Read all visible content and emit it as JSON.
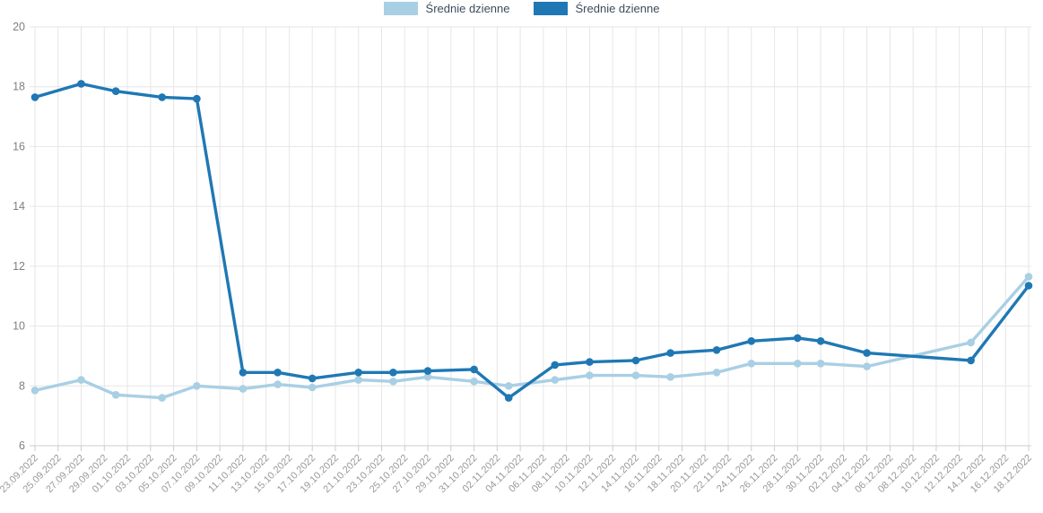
{
  "chart_data": {
    "type": "line",
    "title": "",
    "legend_position": "top-center",
    "grid": true,
    "ylim": [
      6,
      20
    ],
    "yticks": [
      20,
      18,
      16,
      14,
      12,
      10,
      8,
      6
    ],
    "x_axis": {
      "tick_interval_days": 2,
      "tick_labels": [
        "23.09.2022",
        "25.09.2022",
        "27.09.2022",
        "29.09.2022",
        "01.10.2022",
        "03.10.2022",
        "05.10.2022",
        "07.10.2022",
        "09.10.2022",
        "11.10.2022",
        "13.10.2022",
        "15.10.2022",
        "17.10.2022",
        "19.10.2022",
        "21.10.2022",
        "23.10.2022",
        "25.10.2022",
        "27.10.2022",
        "29.10.2022",
        "31.10.2022",
        "02.11.2022",
        "04.11.2022",
        "06.11.2022",
        "08.11.2022",
        "10.11.2022",
        "12.11.2022",
        "14.11.2022",
        "16.11.2022",
        "18.11.2022",
        "20.11.2022",
        "22.11.2022",
        "24.11.2022",
        "26.11.2022",
        "28.11.2022",
        "30.11.2022",
        "02.12.2022",
        "04.12.2022",
        "06.12.2022",
        "08.12.2022",
        "10.12.2022",
        "12.12.2022",
        "14.12.2022",
        "16.12.2022",
        "18.12.2022"
      ]
    },
    "legend": [
      {
        "label": "Średnie dzienne",
        "color": "#a9cfe4"
      },
      {
        "label": "Średnie dzienne",
        "color": "#1f78b4"
      }
    ],
    "series": [
      {
        "name": "Średnie dzienne",
        "color": "#a9cfe4",
        "points": [
          {
            "date": "23.09.2022",
            "day": 0,
            "value": 7.85
          },
          {
            "date": "27.09.2022",
            "day": 4,
            "value": 8.2
          },
          {
            "date": "30.09.2022",
            "day": 7,
            "value": 7.7
          },
          {
            "date": "04.10.2022",
            "day": 11,
            "value": 7.6
          },
          {
            "date": "07.10.2022",
            "day": 14,
            "value": 8.0
          },
          {
            "date": "11.10.2022",
            "day": 18,
            "value": 7.9
          },
          {
            "date": "14.10.2022",
            "day": 21,
            "value": 8.05
          },
          {
            "date": "17.10.2022",
            "day": 24,
            "value": 7.95
          },
          {
            "date": "21.10.2022",
            "day": 28,
            "value": 8.2
          },
          {
            "date": "24.10.2022",
            "day": 31,
            "value": 8.15
          },
          {
            "date": "27.10.2022",
            "day": 34,
            "value": 8.3
          },
          {
            "date": "31.10.2022",
            "day": 38,
            "value": 8.15
          },
          {
            "date": "03.11.2022",
            "day": 41,
            "value": 8.0
          },
          {
            "date": "07.11.2022",
            "day": 45,
            "value": 8.2
          },
          {
            "date": "10.11.2022",
            "day": 48,
            "value": 8.35
          },
          {
            "date": "14.11.2022",
            "day": 52,
            "value": 8.35
          },
          {
            "date": "17.11.2022",
            "day": 55,
            "value": 8.3
          },
          {
            "date": "21.11.2022",
            "day": 59,
            "value": 8.45
          },
          {
            "date": "24.11.2022",
            "day": 62,
            "value": 8.75
          },
          {
            "date": "28.11.2022",
            "day": 66,
            "value": 8.75
          },
          {
            "date": "30.11.2022",
            "day": 68,
            "value": 8.75
          },
          {
            "date": "04.12.2022",
            "day": 72,
            "value": 8.65
          },
          {
            "date": "13.12.2022",
            "day": 81,
            "value": 9.45
          },
          {
            "date": "18.12.2022",
            "day": 86,
            "value": 11.65
          }
        ]
      },
      {
        "name": "Średnie dzienne",
        "color": "#1f78b4",
        "points": [
          {
            "date": "23.09.2022",
            "day": 0,
            "value": 17.65
          },
          {
            "date": "27.09.2022",
            "day": 4,
            "value": 18.1
          },
          {
            "date": "30.09.2022",
            "day": 7,
            "value": 17.85
          },
          {
            "date": "04.10.2022",
            "day": 11,
            "value": 17.65
          },
          {
            "date": "07.10.2022",
            "day": 14,
            "value": 17.6
          },
          {
            "date": "11.10.2022",
            "day": 18,
            "value": 8.45
          },
          {
            "date": "14.10.2022",
            "day": 21,
            "value": 8.45
          },
          {
            "date": "17.10.2022",
            "day": 24,
            "value": 8.25
          },
          {
            "date": "21.10.2022",
            "day": 28,
            "value": 8.45
          },
          {
            "date": "24.10.2022",
            "day": 31,
            "value": 8.45
          },
          {
            "date": "27.10.2022",
            "day": 34,
            "value": 8.5
          },
          {
            "date": "31.10.2022",
            "day": 38,
            "value": 8.55
          },
          {
            "date": "03.11.2022",
            "day": 41,
            "value": 7.6
          },
          {
            "date": "07.11.2022",
            "day": 45,
            "value": 8.7
          },
          {
            "date": "10.11.2022",
            "day": 48,
            "value": 8.8
          },
          {
            "date": "14.11.2022",
            "day": 52,
            "value": 8.85
          },
          {
            "date": "17.11.2022",
            "day": 55,
            "value": 9.1
          },
          {
            "date": "21.11.2022",
            "day": 59,
            "value": 9.2
          },
          {
            "date": "24.11.2022",
            "day": 62,
            "value": 9.5
          },
          {
            "date": "28.11.2022",
            "day": 66,
            "value": 9.6
          },
          {
            "date": "30.11.2022",
            "day": 68,
            "value": 9.5
          },
          {
            "date": "04.12.2022",
            "day": 72,
            "value": 9.1
          },
          {
            "date": "13.12.2022",
            "day": 81,
            "value": 8.85
          },
          {
            "date": "18.12.2022",
            "day": 86,
            "value": 11.35
          }
        ]
      }
    ],
    "style_colors": {
      "grid": "#e6e6e6",
      "axis_line": "#cccccc",
      "y_tick_text": "#808080",
      "x_tick_text": "#999999",
      "legend_text": "#3d4c5c"
    }
  }
}
